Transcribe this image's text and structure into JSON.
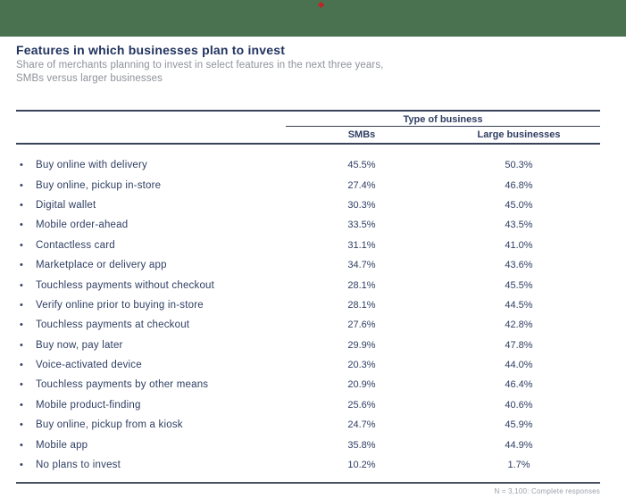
{
  "banner": {
    "color": "#4a7150",
    "marker_icon": "red-diamond",
    "marker_color": "#c42026"
  },
  "header": {
    "title": "Features in which businesses plan to invest",
    "subtitle_line1": "Share of merchants planning to invest in select features in the next three years,",
    "subtitle_line2": "SMBs versus larger businesses"
  },
  "table": {
    "group_header": "Type of business",
    "columns": [
      "SMBs",
      "Large businesses"
    ],
    "bullet_glyph": "•",
    "rows": [
      {
        "feature": "Buy online with delivery",
        "smbs": "45.5%",
        "large": "50.3%"
      },
      {
        "feature": "Buy online, pickup in-store",
        "smbs": "27.4%",
        "large": "46.8%"
      },
      {
        "feature": "Digital wallet",
        "smbs": "30.3%",
        "large": "45.0%"
      },
      {
        "feature": "Mobile order-ahead",
        "smbs": "33.5%",
        "large": "43.5%"
      },
      {
        "feature": "Contactless card",
        "smbs": "31.1%",
        "large": "41.0%"
      },
      {
        "feature": "Marketplace or delivery app",
        "smbs": "34.7%",
        "large": "43.6%"
      },
      {
        "feature": "Touchless payments without checkout",
        "smbs": "28.1%",
        "large": "45.5%"
      },
      {
        "feature": "Verify online prior to buying in-store",
        "smbs": "28.1%",
        "large": "44.5%"
      },
      {
        "feature": "Touchless payments at checkout",
        "smbs": "27.6%",
        "large": "42.8%"
      },
      {
        "feature": "Buy now, pay later",
        "smbs": "29.9%",
        "large": "47.8%"
      },
      {
        "feature": "Voice-activated device",
        "smbs": "20.3%",
        "large": "44.0%"
      },
      {
        "feature": "Touchless payments by other means",
        "smbs": "20.9%",
        "large": "46.4%"
      },
      {
        "feature": "Mobile product-finding",
        "smbs": "25.6%",
        "large": "40.6%"
      },
      {
        "feature": "Buy online, pickup from a kiosk",
        "smbs": "24.7%",
        "large": "45.9%"
      },
      {
        "feature": "Mobile app",
        "smbs": "35.8%",
        "large": "44.9%"
      },
      {
        "feature": "No plans to invest",
        "smbs": "10.2%",
        "large": "1.7%"
      }
    ]
  },
  "footnote": "N = 3,100: Complete responses",
  "colors": {
    "text_navy": "#2f3e62",
    "text_gray": "#8e929a",
    "rule": "#39435a",
    "banner_green": "#4a7150",
    "marker_red": "#c42026"
  }
}
